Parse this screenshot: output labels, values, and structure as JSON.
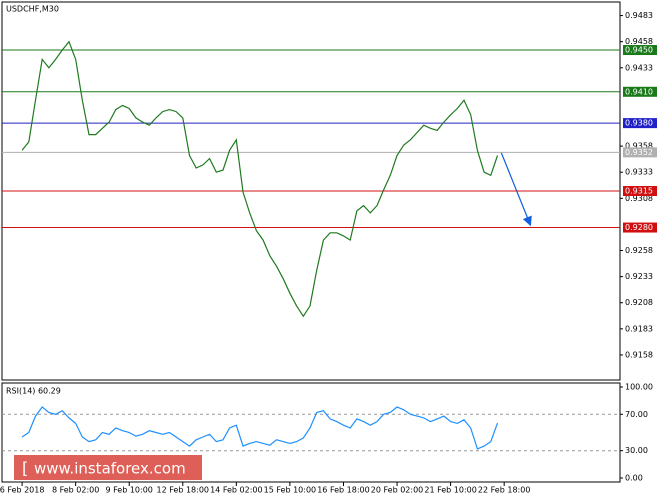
{
  "chart_data": [
    {
      "type": "line",
      "title": "USDCHF,M30",
      "x": [
        0,
        1,
        2,
        3,
        4,
        5,
        6,
        7,
        8,
        9,
        10,
        11,
        12,
        13,
        14,
        15,
        16,
        17,
        18,
        19,
        20,
        21,
        22,
        23,
        24,
        25,
        26,
        27,
        28,
        29,
        30,
        31,
        32,
        33,
        34,
        35,
        36,
        37,
        38,
        39,
        40,
        41,
        42,
        43,
        44,
        45,
        46,
        47,
        48,
        49,
        50,
        51,
        52,
        53,
        54,
        55,
        56,
        57,
        58,
        59,
        60,
        61,
        62,
        63,
        64,
        65,
        66,
        67,
        68,
        69,
        70,
        71
      ],
      "series": [
        {
          "name": "USDCHF",
          "color": "#1f7a1f",
          "values": [
            0.9354,
            0.9362,
            0.9402,
            0.9441,
            0.9433,
            0.9441,
            0.945,
            0.9458,
            0.9441,
            0.9402,
            0.9369,
            0.9369,
            0.9375,
            0.9381,
            0.9393,
            0.9397,
            0.9394,
            0.9385,
            0.9381,
            0.9378,
            0.9385,
            0.9391,
            0.9393,
            0.9391,
            0.9385,
            0.9349,
            0.9337,
            0.934,
            0.9346,
            0.9333,
            0.9335,
            0.9354,
            0.9364,
            0.9314,
            0.9294,
            0.9277,
            0.9268,
            0.9253,
            0.9243,
            0.9231,
            0.9217,
            0.9205,
            0.9195,
            0.9205,
            0.9239,
            0.9268,
            0.9275,
            0.9275,
            0.9272,
            0.9268,
            0.9296,
            0.9301,
            0.9294,
            0.9301,
            0.9316,
            0.933,
            0.9349,
            0.9359,
            0.9364,
            0.9371,
            0.9378,
            0.9375,
            0.9373,
            0.9381,
            0.9388,
            0.9394,
            0.9402,
            0.9388,
            0.9354,
            0.9333,
            0.933,
            0.9349
          ]
        }
      ],
      "xlim": [
        -3,
        89.3
      ],
      "ylim": [
        0.9134,
        0.9496
      ],
      "xticks": [
        {
          "value": 0,
          "label": "6 Feb 2018"
        },
        {
          "value": 8,
          "label": "8 Feb 02:00"
        },
        {
          "value": 16,
          "label": "9 Feb 10:00"
        },
        {
          "value": 24,
          "label": "12 Feb 18:00"
        },
        {
          "value": 32,
          "label": "14 Feb 02:00"
        },
        {
          "value": 40,
          "label": "15 Feb 10:00"
        },
        {
          "value": 48,
          "label": "16 Feb 18:00"
        },
        {
          "value": 56,
          "label": "20 Feb 02:00"
        },
        {
          "value": 64,
          "label": "21 Feb 10:00"
        },
        {
          "value": 72,
          "label": "22 Feb 18:00"
        }
      ],
      "yticks": [
        0.9483,
        0.9458,
        0.9433,
        0.9358,
        0.9333,
        0.9308,
        0.9258,
        0.9233,
        0.9208,
        0.9183,
        0.9158
      ],
      "levels": [
        {
          "value": 0.945,
          "label": "0.9450",
          "color": "#1a7a1a"
        },
        {
          "value": 0.941,
          "label": "0.9410",
          "color": "#1a7a1a"
        },
        {
          "value": 0.938,
          "label": "0.9380",
          "color": "#2020c8"
        },
        {
          "value": 0.9352,
          "label": "0.9352",
          "color": "#b0b0b0"
        },
        {
          "value": 0.9315,
          "label": "0.9315",
          "color": "#d01010"
        },
        {
          "value": 0.928,
          "label": "0.9280",
          "color": "#d01010"
        }
      ],
      "watermark": "www.instaforex.com"
    },
    {
      "type": "line",
      "title": "RSI(14) 60.29",
      "series": [
        {
          "name": "RSI(14)",
          "color": "#1e90ff",
          "values": [
            45,
            50,
            68,
            78,
            72,
            70,
            74,
            66,
            60,
            45,
            40,
            42,
            50,
            48,
            55,
            52,
            50,
            46,
            48,
            52,
            50,
            48,
            50,
            45,
            40,
            35,
            42,
            45,
            48,
            40,
            42,
            55,
            58,
            35,
            38,
            40,
            38,
            36,
            42,
            40,
            38,
            40,
            44,
            55,
            72,
            74,
            65,
            62,
            58,
            55,
            65,
            62,
            58,
            62,
            70,
            72,
            78,
            75,
            70,
            68,
            66,
            62,
            65,
            68,
            62,
            60,
            64,
            55,
            32,
            35,
            40,
            60.29
          ]
        }
      ],
      "ylim": [
        -4.4,
        104.4
      ],
      "yticks": [
        {
          "value": 100,
          "label": "100.00"
        },
        {
          "value": 70,
          "label": "70.00"
        },
        {
          "value": 30,
          "label": "30.00"
        },
        {
          "value": 0,
          "label": "0.00"
        }
      ],
      "dashed_levels": [
        70,
        30
      ]
    }
  ]
}
